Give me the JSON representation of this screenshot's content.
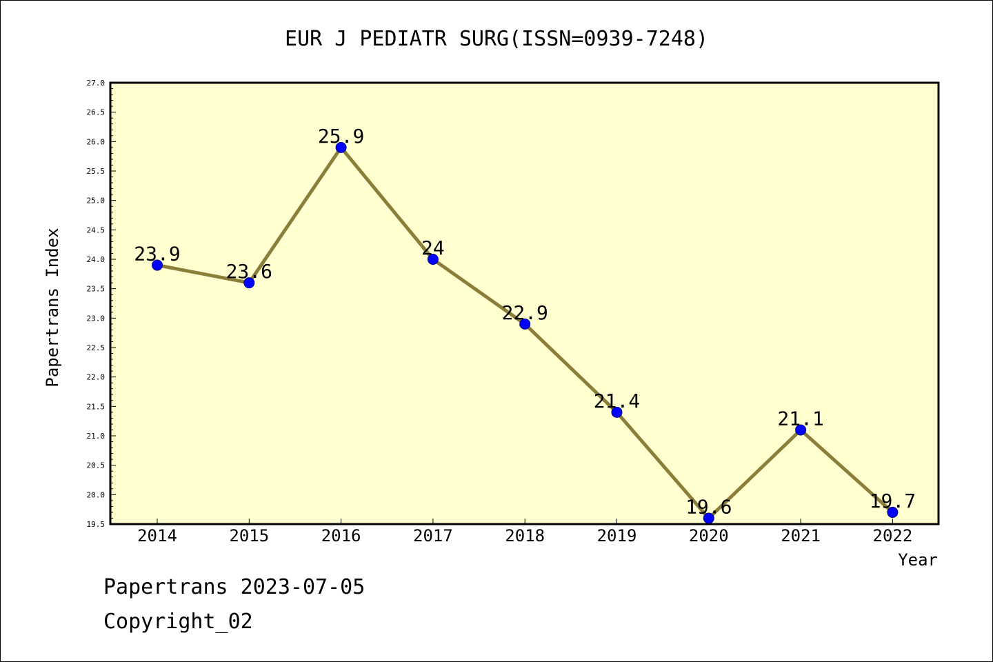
{
  "chart_data": {
    "type": "line",
    "title": "EUR J PEDIATR SURG(ISSN=0939-7248)",
    "xlabel": "Year",
    "ylabel": "Papertrans Index",
    "x": [
      "2014",
      "2015",
      "2016",
      "2017",
      "2018",
      "2019",
      "2020",
      "2021",
      "2022"
    ],
    "values": [
      23.9,
      23.6,
      25.9,
      24.0,
      22.9,
      21.4,
      19.6,
      21.1,
      19.7
    ],
    "data_labels": [
      "23.9",
      "23.6",
      "25.9",
      "24",
      "22.9",
      "21.4",
      "19.6",
      "21.1",
      "19.7"
    ],
    "ylim": [
      19.5,
      27.0
    ],
    "ytick_labels": [
      "19.5",
      "20.0",
      "20.5",
      "21.0",
      "21.5",
      "22.0",
      "22.5",
      "23.0",
      "23.5",
      "24.0",
      "24.5",
      "25.0",
      "25.5",
      "26.0",
      "26.5",
      "27.0"
    ],
    "grid": false,
    "colors": {
      "plot_background": "#ffffd0",
      "line": "#8b7d3a",
      "marker": "#0000ff"
    }
  },
  "footer": {
    "source": "Papertrans 2023-07-05",
    "copyright": "Copyright_02"
  }
}
